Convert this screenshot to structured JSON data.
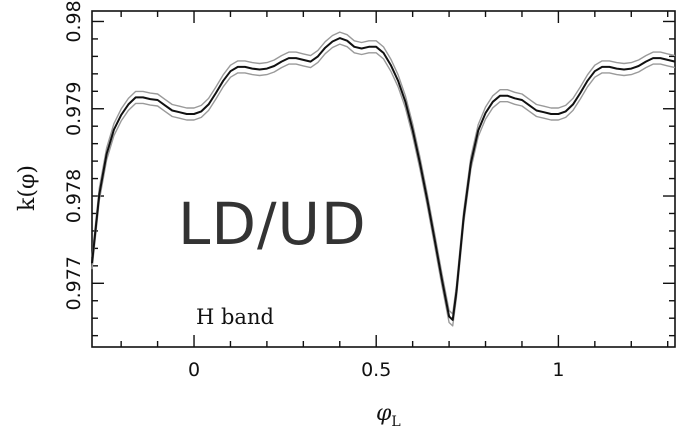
{
  "chart_data": {
    "type": "line",
    "xlabel_main": "φ",
    "xlabel_sub": "L",
    "ylabel": "k(φ)",
    "xlim": [
      -0.28,
      1.32
    ],
    "ylim": [
      0.97627,
      0.98012
    ],
    "xticks": [
      0,
      0.5,
      1
    ],
    "xtick_labels": [
      "0",
      "0.5",
      "1"
    ],
    "yticks": [
      0.977,
      0.978,
      0.979,
      0.98
    ],
    "ytick_labels": [
      "0.977",
      "0.978",
      "0.979",
      "0.98"
    ],
    "annotations": [
      {
        "text": "H band"
      },
      {
        "text": "LD/UD"
      }
    ],
    "grid": false,
    "colors": {
      "main": "#111111",
      "envelope": "#9a9a9a"
    },
    "series": [
      {
        "role": "main",
        "x": [
          -0.28,
          -0.26,
          -0.24,
          -0.22,
          -0.2,
          -0.18,
          -0.16,
          -0.14,
          -0.12,
          -0.1,
          -0.08,
          -0.06,
          -0.04,
          -0.02,
          0,
          0.02,
          0.04,
          0.06,
          0.08,
          0.1,
          0.12,
          0.14,
          0.16,
          0.18,
          0.2,
          0.22,
          0.24,
          0.26,
          0.28,
          0.3,
          0.32,
          0.34,
          0.36,
          0.38,
          0.4,
          0.42,
          0.44,
          0.46,
          0.48,
          0.5,
          0.52,
          0.54,
          0.56,
          0.58,
          0.6,
          0.62,
          0.64,
          0.66,
          0.68,
          0.7,
          0.71,
          0.72,
          0.74,
          0.76,
          0.78,
          0.8,
          0.82,
          0.84,
          0.86,
          0.88,
          0.9,
          0.92,
          0.94,
          0.96,
          0.98,
          1,
          1.02,
          1.04,
          1.06,
          1.08,
          1.1,
          1.12,
          1.14,
          1.16,
          1.18,
          1.2,
          1.22,
          1.24,
          1.26,
          1.28,
          1.3,
          1.32
        ],
        "y": [
          0.97723,
          0.97802,
          0.97848,
          0.97876,
          0.97893,
          0.97905,
          0.97913,
          0.97913,
          0.97911,
          0.9791,
          0.97904,
          0.97898,
          0.97896,
          0.97894,
          0.97894,
          0.97897,
          0.97905,
          0.97918,
          0.97932,
          0.97943,
          0.97948,
          0.97948,
          0.97946,
          0.97945,
          0.97946,
          0.97949,
          0.97954,
          0.97958,
          0.97958,
          0.97956,
          0.97954,
          0.9796,
          0.9797,
          0.97977,
          0.97981,
          0.97978,
          0.97971,
          0.97969,
          0.97971,
          0.97971,
          0.97964,
          0.9795,
          0.97932,
          0.97908,
          0.97876,
          0.97838,
          0.97796,
          0.97751,
          0.97705,
          0.97662,
          0.97658,
          0.9769,
          0.97776,
          0.97838,
          0.97875,
          0.97895,
          0.97908,
          0.97915,
          0.97915,
          0.97912,
          0.9791,
          0.97904,
          0.97898,
          0.97896,
          0.97894,
          0.97894,
          0.97897,
          0.97905,
          0.97918,
          0.97932,
          0.97943,
          0.97948,
          0.97948,
          0.97946,
          0.97945,
          0.97946,
          0.97949,
          0.97954,
          0.97958,
          0.97958,
          0.97956,
          0.97954
        ]
      }
    ]
  }
}
